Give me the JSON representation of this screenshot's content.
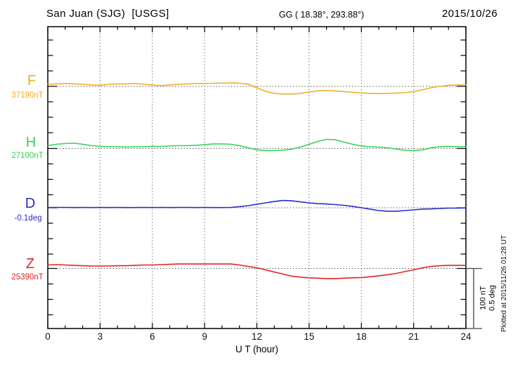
{
  "header": {
    "station_title": "San Juan (SJG)  [USGS]",
    "coordinates": "GG ( 18.38°, 293.88°)",
    "date": "2015/10/26"
  },
  "footer": {
    "plotted_at": "Plotted at 2015/11/26 01:28 UT"
  },
  "scale_bar": {
    "label_nt": "100 nT",
    "label_deg": "0.5 deg",
    "nT_per_bar": 100,
    "deg_per_bar": 0.5
  },
  "chart_data": {
    "type": "line",
    "title": "San Juan (SJG) magnetogram, four components, deviations from baseline",
    "xlabel": "U T (hour)",
    "xlim": [
      0,
      24
    ],
    "x_major_ticks": [
      0,
      3,
      6,
      9,
      12,
      15,
      18,
      21,
      24
    ],
    "x_minor_step_hours": 1,
    "grid": "vertical dotted lines every 3 h; dotted horizontal baseline per channel",
    "x_hours": [
      0,
      0.5,
      1,
      1.5,
      2,
      2.5,
      3,
      3.5,
      4,
      4.5,
      5,
      5.5,
      6,
      6.5,
      7,
      7.5,
      8,
      8.5,
      9,
      9.5,
      10,
      10.5,
      11,
      11.5,
      12,
      12.5,
      13,
      13.5,
      14,
      14.5,
      15,
      15.5,
      16,
      16.5,
      17,
      17.5,
      18,
      18.5,
      19,
      19.5,
      20,
      20.5,
      21,
      21.5,
      22,
      22.5,
      23,
      23.5,
      24
    ],
    "series": [
      {
        "name": "F",
        "unit": "nT",
        "base_value": 37190,
        "base_label": "37190nT",
        "color": "#F0AC1E",
        "delta": [
          3.4,
          4.0,
          4.6,
          4.0,
          3.4,
          2.3,
          1.7,
          3.4,
          4.0,
          4.0,
          4.6,
          3.4,
          2.3,
          1.1,
          2.3,
          3.4,
          4.0,
          4.6,
          4.6,
          5.2,
          5.2,
          5.7,
          5.2,
          3.4,
          -2.3,
          -8.0,
          -11.5,
          -12.6,
          -12.6,
          -11.5,
          -9.2,
          -7.5,
          -6.9,
          -7.5,
          -8.6,
          -9.8,
          -10.9,
          -11.5,
          -12.0,
          -11.5,
          -10.9,
          -10.3,
          -8.6,
          -5.7,
          -2.3,
          0.0,
          1.7,
          2.3,
          2.3
        ]
      },
      {
        "name": "H",
        "unit": "nT",
        "base_value": 27100,
        "base_label": "27100nT",
        "color": "#31D455",
        "delta": [
          4.6,
          6.9,
          8.0,
          8.6,
          6.9,
          4.6,
          3.4,
          2.9,
          2.9,
          2.3,
          2.9,
          2.9,
          3.4,
          3.4,
          4.0,
          4.6,
          4.6,
          5.2,
          6.3,
          7.4,
          7.4,
          6.9,
          4.6,
          1.1,
          -2.3,
          -3.4,
          -3.4,
          -2.9,
          -1.1,
          2.3,
          6.9,
          11.5,
          14.9,
          14.3,
          10.3,
          6.9,
          4.0,
          2.9,
          2.3,
          1.1,
          -1.1,
          -2.9,
          -3.4,
          -2.3,
          1.1,
          2.9,
          3.4,
          2.9,
          2.9
        ]
      },
      {
        "name": "D",
        "unit": "deg",
        "base_value": -0.1,
        "base_label": "-0.1deg",
        "color": "#2A2ACA",
        "delta": [
          0.002,
          0.003,
          0.003,
          0.002,
          0.003,
          0.002,
          0.003,
          0.002,
          0.003,
          0.002,
          0.002,
          0.003,
          0.002,
          0.003,
          0.002,
          0.003,
          0.003,
          0.002,
          0.003,
          0.002,
          0.002,
          0.003,
          0.009,
          0.017,
          0.028,
          0.04,
          0.051,
          0.06,
          0.057,
          0.048,
          0.04,
          0.034,
          0.031,
          0.026,
          0.02,
          0.011,
          0.0,
          -0.011,
          -0.023,
          -0.028,
          -0.028,
          -0.023,
          -0.017,
          -0.011,
          -0.009,
          -0.006,
          -0.003,
          -0.003,
          -0.001
        ]
      },
      {
        "name": "Z",
        "unit": "nT",
        "base_value": 25390,
        "base_label": "25390nT",
        "color": "#E62222",
        "delta": [
          5.7,
          6.3,
          5.7,
          5.1,
          4.5,
          4.0,
          4.0,
          4.0,
          4.5,
          4.5,
          5.1,
          5.7,
          5.7,
          6.3,
          6.8,
          7.4,
          7.4,
          7.4,
          7.4,
          7.4,
          7.4,
          7.4,
          5.7,
          3.4,
          1.1,
          -2.3,
          -5.7,
          -9.1,
          -12.5,
          -14.2,
          -15.3,
          -15.9,
          -16.5,
          -16.5,
          -15.9,
          -15.3,
          -14.8,
          -13.6,
          -11.9,
          -10.2,
          -8.0,
          -5.1,
          -2.3,
          1.1,
          3.4,
          4.5,
          5.1,
          5.1,
          5.1
        ]
      }
    ]
  }
}
